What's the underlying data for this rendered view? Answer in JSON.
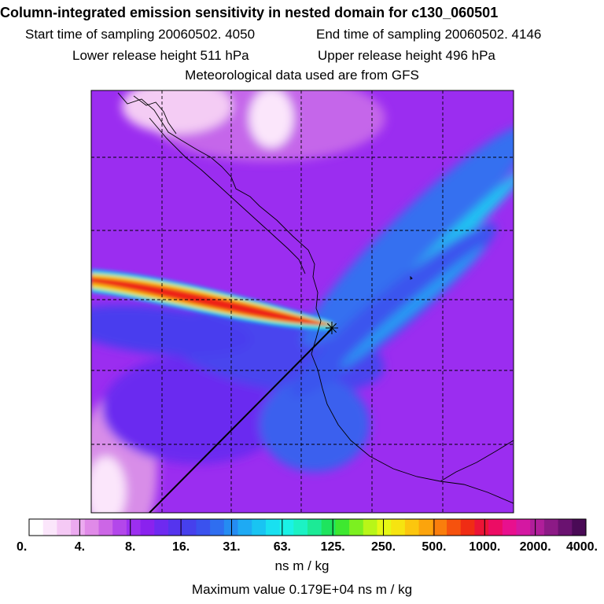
{
  "chart_data": {
    "type": "heatmap",
    "title": "Column-integrated emission sensitivity in nested domain for c130_060501",
    "start_label": "Start time of sampling 20060502.  4050",
    "end_label": "End time of sampling 20060502.  4146",
    "lower_label": "Lower release height  511 hPa",
    "upper_label": "Upper release height  496 hPa",
    "met_label": "Meteorological data used are from GFS",
    "colorbar": {
      "tick_labels": [
        "0.",
        "4.",
        "8.",
        "16.",
        "31.",
        "63.",
        "125.",
        "250.",
        "500.",
        "1000.",
        "2000.",
        "4000."
      ],
      "colors": [
        "#ffffff",
        "#fbe6fb",
        "#f5c9f5",
        "#ecaaf0",
        "#e08ae8",
        "#cc66e6",
        "#b347ea",
        "#9c2ff0",
        "#8a22ee",
        "#6e2af0",
        "#5534ee",
        "#4640ec",
        "#3a52ee",
        "#2f6ef0",
        "#258cf2",
        "#1eaaf4",
        "#19c4f2",
        "#19e0f0",
        "#1af2e6",
        "#1cf2c4",
        "#1cea96",
        "#1ee45e",
        "#3ee830",
        "#7cf020",
        "#b8f618",
        "#e6f814",
        "#f6e410",
        "#fcc60e",
        "#fca40c",
        "#fa7e0c",
        "#f6520e",
        "#f02c14",
        "#ec1436",
        "#ec0c64",
        "#e8108e",
        "#d418a2",
        "#b01e9a",
        "#8c1a86",
        "#6a1270",
        "#4a0a56"
      ],
      "units": "ns m / kg"
    },
    "max_value_label": "Maximum value  0.179E+04 ns m / kg",
    "max_value": 1790,
    "release_marker": "✳"
  }
}
